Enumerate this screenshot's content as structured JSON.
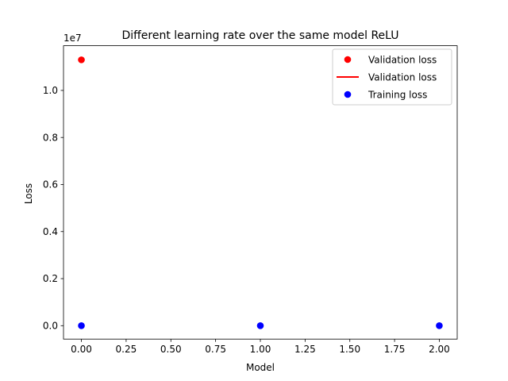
{
  "chart_data": {
    "type": "scatter",
    "title": "Different learning rate over the same model ReLU",
    "xlabel": "Model",
    "ylabel": "Loss",
    "y_scale_label": "1e7",
    "xlim": [
      -0.1,
      2.1
    ],
    "ylim": [
      -0.057,
      1.19
    ],
    "xticks": [
      0.0,
      0.25,
      0.5,
      0.75,
      1.0,
      1.25,
      1.5,
      1.75,
      2.0
    ],
    "xtick_labels": [
      "0.00",
      "0.25",
      "0.50",
      "0.75",
      "1.00",
      "1.25",
      "1.50",
      "1.75",
      "2.00"
    ],
    "yticks": [
      0.0,
      0.2,
      0.4,
      0.6,
      0.8,
      1.0
    ],
    "ytick_labels": [
      "0.0",
      "0.2",
      "0.4",
      "0.6",
      "0.8",
      "1.0"
    ],
    "grid": false,
    "legend_position": "top-right",
    "series": [
      {
        "name": "Validation loss",
        "style": "marker",
        "color": "#ff0000",
        "x": [
          0
        ],
        "y": [
          1.13
        ]
      },
      {
        "name": "Validation loss",
        "style": "line",
        "color": "#ff0000",
        "x": [],
        "y": []
      },
      {
        "name": "Training loss",
        "style": "marker",
        "color": "#0000ff",
        "x": [
          0,
          1,
          2
        ],
        "y": [
          0.0,
          0.0,
          0.0
        ]
      }
    ]
  }
}
